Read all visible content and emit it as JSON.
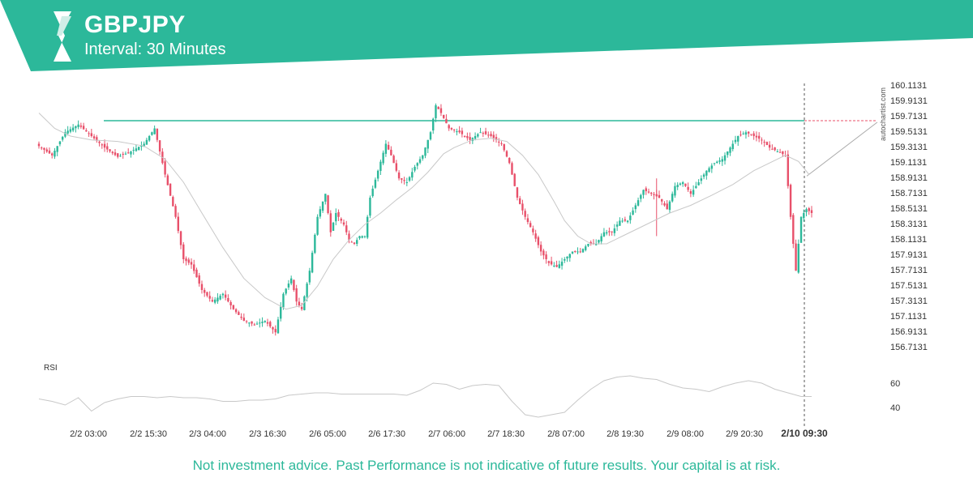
{
  "header": {
    "symbol": "GBPJPY",
    "interval": "Interval: 30 Minutes",
    "brand_color": "#2cb89a",
    "logo_icon": "autochartist-logo-icon"
  },
  "watermark": "autochartist.com",
  "disclaimer": "Not investment advice. Past Performance is not indicative of future results. Your capital is at risk.",
  "colors": {
    "up_candle": "#2cb89a",
    "down_candle": "#e8506a",
    "moving_average": "#c8c8c8",
    "resistance_line": "#2cb89a",
    "rsi_line": "#c8c8c8"
  },
  "chart_data": {
    "type": "candlestick",
    "title": "GBPJPY",
    "interval": "30 Minutes",
    "price_ylim": [
      156.63,
      160.16
    ],
    "price_ticks": [
      "160.1131",
      "159.9131",
      "159.7131",
      "159.5131",
      "159.3131",
      "159.1131",
      "158.9131",
      "158.7131",
      "158.5131",
      "158.3131",
      "158.1131",
      "157.9131",
      "157.7131",
      "157.5131",
      "157.3131",
      "157.1131",
      "156.9131",
      "156.7131"
    ],
    "x_ticks": [
      "2/2 03:00",
      "2/2 15:30",
      "2/3 04:00",
      "2/3 16:30",
      "2/6 05:00",
      "2/6 17:30",
      "2/7 06:00",
      "2/7 18:30",
      "2/8 07:00",
      "2/8 19:30",
      "2/9 08:00",
      "2/9 20:30",
      "2/10 09:30"
    ],
    "current_time_label": "2/10 09:30",
    "resistance_level": 159.65,
    "projection": {
      "from": 158.93,
      "to": 159.63
    },
    "price_path": [
      [
        0,
        159.32
      ],
      [
        5,
        159.2
      ],
      [
        10,
        159.5
      ],
      [
        15,
        159.6
      ],
      [
        20,
        159.45
      ],
      [
        25,
        159.3
      ],
      [
        30,
        159.18
      ],
      [
        35,
        159.25
      ],
      [
        40,
        159.35
      ],
      [
        44,
        159.55
      ],
      [
        48,
        158.95
      ],
      [
        52,
        158.4
      ],
      [
        55,
        157.85
      ],
      [
        58,
        157.78
      ],
      [
        62,
        157.45
      ],
      [
        66,
        157.3
      ],
      [
        70,
        157.4
      ],
      [
        74,
        157.2
      ],
      [
        78,
        157.05
      ],
      [
        82,
        157.0
      ],
      [
        86,
        157.05
      ],
      [
        90,
        156.9
      ],
      [
        93,
        157.4
      ],
      [
        96,
        157.6
      ],
      [
        98,
        157.3
      ],
      [
        100,
        157.2
      ],
      [
        103,
        157.7
      ],
      [
        106,
        158.4
      ],
      [
        109,
        158.7
      ],
      [
        111,
        158.2
      ],
      [
        113,
        158.45
      ],
      [
        116,
        158.3
      ],
      [
        118,
        158.1
      ],
      [
        120,
        158.05
      ],
      [
        122,
        158.15
      ],
      [
        124,
        158.15
      ],
      [
        126,
        158.65
      ],
      [
        129,
        159.0
      ],
      [
        132,
        159.35
      ],
      [
        134,
        159.2
      ],
      [
        137,
        158.9
      ],
      [
        140,
        158.85
      ],
      [
        143,
        159.05
      ],
      [
        146,
        159.2
      ],
      [
        149,
        159.5
      ],
      [
        151,
        159.85
      ],
      [
        153,
        159.75
      ],
      [
        156,
        159.55
      ],
      [
        160,
        159.5
      ],
      [
        164,
        159.4
      ],
      [
        168,
        159.5
      ],
      [
        172,
        159.45
      ],
      [
        176,
        159.35
      ],
      [
        179,
        159.1
      ],
      [
        182,
        158.65
      ],
      [
        185,
        158.4
      ],
      [
        188,
        158.2
      ],
      [
        191,
        157.95
      ],
      [
        194,
        157.8
      ],
      [
        197,
        157.75
      ],
      [
        200,
        157.85
      ],
      [
        203,
        157.95
      ],
      [
        206,
        157.95
      ],
      [
        209,
        158.05
      ],
      [
        212,
        158.05
      ],
      [
        215,
        158.2
      ],
      [
        218,
        158.2
      ],
      [
        221,
        158.35
      ],
      [
        224,
        158.35
      ],
      [
        227,
        158.55
      ],
      [
        230,
        158.75
      ],
      [
        233,
        158.7
      ],
      [
        236,
        158.65
      ],
      [
        239,
        158.5
      ],
      [
        242,
        158.8
      ],
      [
        245,
        158.85
      ],
      [
        248,
        158.7
      ],
      [
        251,
        158.85
      ],
      [
        254,
        159.0
      ],
      [
        257,
        159.1
      ],
      [
        260,
        159.15
      ],
      [
        263,
        159.3
      ],
      [
        266,
        159.45
      ],
      [
        269,
        159.5
      ],
      [
        272,
        159.45
      ],
      [
        275,
        159.4
      ],
      [
        278,
        159.3
      ],
      [
        281,
        159.25
      ],
      [
        284,
        159.2
      ],
      [
        286,
        158.4
      ],
      [
        288,
        157.7
      ],
      [
        290,
        158.4
      ],
      [
        292,
        158.5
      ],
      [
        294,
        158.45
      ]
    ],
    "moving_average_path": [
      [
        0,
        159.75
      ],
      [
        6,
        159.55
      ],
      [
        12,
        159.45
      ],
      [
        20,
        159.4
      ],
      [
        30,
        159.38
      ],
      [
        40,
        159.32
      ],
      [
        48,
        159.15
      ],
      [
        55,
        158.85
      ],
      [
        62,
        158.45
      ],
      [
        70,
        158.0
      ],
      [
        78,
        157.6
      ],
      [
        86,
        157.35
      ],
      [
        94,
        157.2
      ],
      [
        100,
        157.25
      ],
      [
        106,
        157.5
      ],
      [
        112,
        157.85
      ],
      [
        118,
        158.1
      ],
      [
        124,
        158.3
      ],
      [
        130,
        158.45
      ],
      [
        136,
        158.62
      ],
      [
        142,
        158.78
      ],
      [
        148,
        158.98
      ],
      [
        154,
        159.22
      ],
      [
        158,
        159.3
      ],
      [
        165,
        159.4
      ],
      [
        172,
        159.42
      ],
      [
        178,
        159.38
      ],
      [
        184,
        159.2
      ],
      [
        190,
        158.95
      ],
      [
        196,
        158.6
      ],
      [
        200,
        158.35
      ],
      [
        205,
        158.15
      ],
      [
        210,
        158.05
      ],
      [
        216,
        158.05
      ],
      [
        222,
        158.15
      ],
      [
        228,
        158.25
      ],
      [
        234,
        158.35
      ],
      [
        240,
        158.45
      ],
      [
        248,
        158.55
      ],
      [
        256,
        158.68
      ],
      [
        264,
        158.82
      ],
      [
        272,
        159.0
      ],
      [
        278,
        159.1
      ],
      [
        284,
        159.2
      ],
      [
        289,
        159.12
      ],
      [
        293,
        158.95
      ]
    ],
    "rsi": {
      "label": "RSI",
      "ticks": [
        "60",
        "40"
      ],
      "ylim": [
        27,
        77
      ],
      "values": [
        [
          0,
          47
        ],
        [
          5,
          45
        ],
        [
          10,
          42
        ],
        [
          15,
          48
        ],
        [
          20,
          37
        ],
        [
          25,
          44
        ],
        [
          30,
          47
        ],
        [
          35,
          49
        ],
        [
          40,
          49
        ],
        [
          45,
          48
        ],
        [
          50,
          49
        ],
        [
          55,
          48
        ],
        [
          60,
          48
        ],
        [
          65,
          47
        ],
        [
          70,
          45
        ],
        [
          75,
          45
        ],
        [
          80,
          46
        ],
        [
          85,
          46
        ],
        [
          90,
          47
        ],
        [
          95,
          50
        ],
        [
          100,
          51
        ],
        [
          105,
          52
        ],
        [
          110,
          52
        ],
        [
          115,
          51
        ],
        [
          120,
          51
        ],
        [
          125,
          51
        ],
        [
          130,
          51
        ],
        [
          135,
          51
        ],
        [
          140,
          50
        ],
        [
          145,
          54
        ],
        [
          150,
          60
        ],
        [
          155,
          59
        ],
        [
          160,
          55
        ],
        [
          165,
          58
        ],
        [
          170,
          59
        ],
        [
          175,
          58
        ],
        [
          180,
          45
        ],
        [
          185,
          34
        ],
        [
          190,
          32
        ],
        [
          195,
          34
        ],
        [
          200,
          36
        ],
        [
          205,
          46
        ],
        [
          210,
          55
        ],
        [
          215,
          62
        ],
        [
          220,
          65
        ],
        [
          225,
          66
        ],
        [
          230,
          64
        ],
        [
          235,
          63
        ],
        [
          240,
          59
        ],
        [
          245,
          56
        ],
        [
          250,
          55
        ],
        [
          255,
          53
        ],
        [
          260,
          57
        ],
        [
          265,
          60
        ],
        [
          270,
          62
        ],
        [
          275,
          60
        ],
        [
          280,
          55
        ],
        [
          285,
          52
        ],
        [
          290,
          49
        ],
        [
          294,
          49
        ]
      ]
    }
  }
}
